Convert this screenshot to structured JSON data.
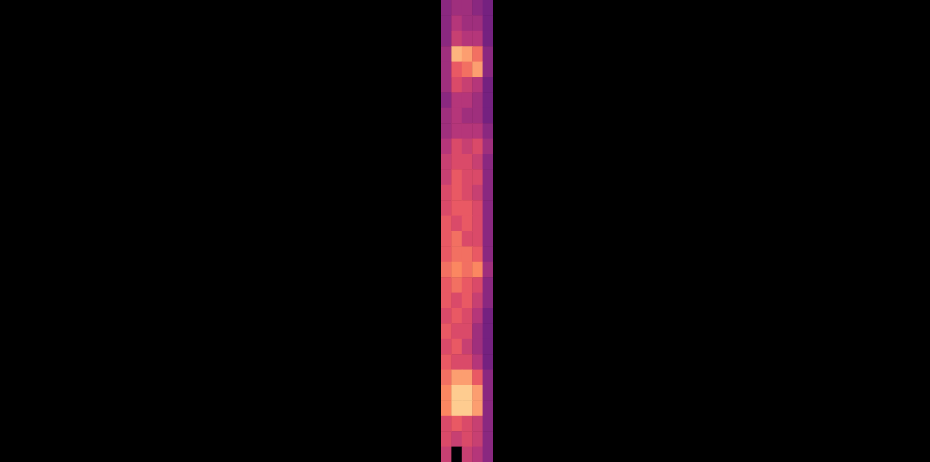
{
  "chart_data": {
    "type": "heatmap",
    "tick_labels": false,
    "xlim": [
      0,
      5
    ],
    "ylim": [
      0,
      30
    ],
    "x": [
      0.5,
      1.5,
      2.5,
      3.5,
      4.5
    ],
    "y": [
      29.5,
      28.5,
      27.5,
      26.5,
      25.5,
      24.5,
      23.5,
      22.5,
      21.5,
      20.5,
      19.5,
      18.5,
      17.5,
      16.5,
      15.5,
      14.5,
      13.5,
      12.5,
      11.5,
      10.5,
      9.5,
      8.5,
      7.5,
      6.5,
      5.5,
      4.5,
      3.5,
      2.5,
      1.5,
      0.5
    ],
    "color_range": [
      0,
      1
    ],
    "z": [
      [
        0.4,
        0.45,
        0.45,
        0.4,
        0.35
      ],
      [
        0.4,
        0.5,
        0.45,
        0.45,
        0.35
      ],
      [
        0.4,
        0.55,
        0.5,
        0.5,
        0.35
      ],
      [
        0.45,
        0.85,
        0.8,
        0.7,
        0.4
      ],
      [
        0.45,
        0.65,
        0.7,
        0.8,
        0.4
      ],
      [
        0.45,
        0.6,
        0.55,
        0.5,
        0.35
      ],
      [
        0.4,
        0.5,
        0.5,
        0.45,
        0.35
      ],
      [
        0.45,
        0.5,
        0.45,
        0.45,
        0.35
      ],
      [
        0.45,
        0.5,
        0.5,
        0.5,
        0.4
      ],
      [
        0.5,
        0.6,
        0.55,
        0.6,
        0.45
      ],
      [
        0.55,
        0.6,
        0.6,
        0.55,
        0.4
      ],
      [
        0.55,
        0.65,
        0.6,
        0.6,
        0.4
      ],
      [
        0.6,
        0.65,
        0.6,
        0.55,
        0.4
      ],
      [
        0.6,
        0.65,
        0.65,
        0.6,
        0.4
      ],
      [
        0.65,
        0.6,
        0.65,
        0.6,
        0.4
      ],
      [
        0.65,
        0.7,
        0.6,
        0.6,
        0.4
      ],
      [
        0.65,
        0.7,
        0.7,
        0.65,
        0.4
      ],
      [
        0.7,
        0.75,
        0.7,
        0.75,
        0.45
      ],
      [
        0.65,
        0.7,
        0.65,
        0.6,
        0.4
      ],
      [
        0.65,
        0.6,
        0.65,
        0.55,
        0.4
      ],
      [
        0.6,
        0.65,
        0.6,
        0.5,
        0.35
      ],
      [
        0.65,
        0.6,
        0.6,
        0.45,
        0.35
      ],
      [
        0.6,
        0.65,
        0.55,
        0.45,
        0.35
      ],
      [
        0.65,
        0.6,
        0.6,
        0.5,
        0.35
      ],
      [
        0.7,
        0.8,
        0.8,
        0.65,
        0.4
      ],
      [
        0.75,
        0.9,
        0.9,
        0.8,
        0.4
      ],
      [
        0.75,
        0.9,
        0.9,
        0.8,
        0.4
      ],
      [
        0.6,
        0.65,
        0.6,
        0.55,
        0.4
      ],
      [
        0.6,
        0.55,
        0.6,
        0.55,
        0.4
      ],
      [
        0.55,
        0.0,
        0.55,
        0.5,
        0.4
      ]
    ]
  }
}
